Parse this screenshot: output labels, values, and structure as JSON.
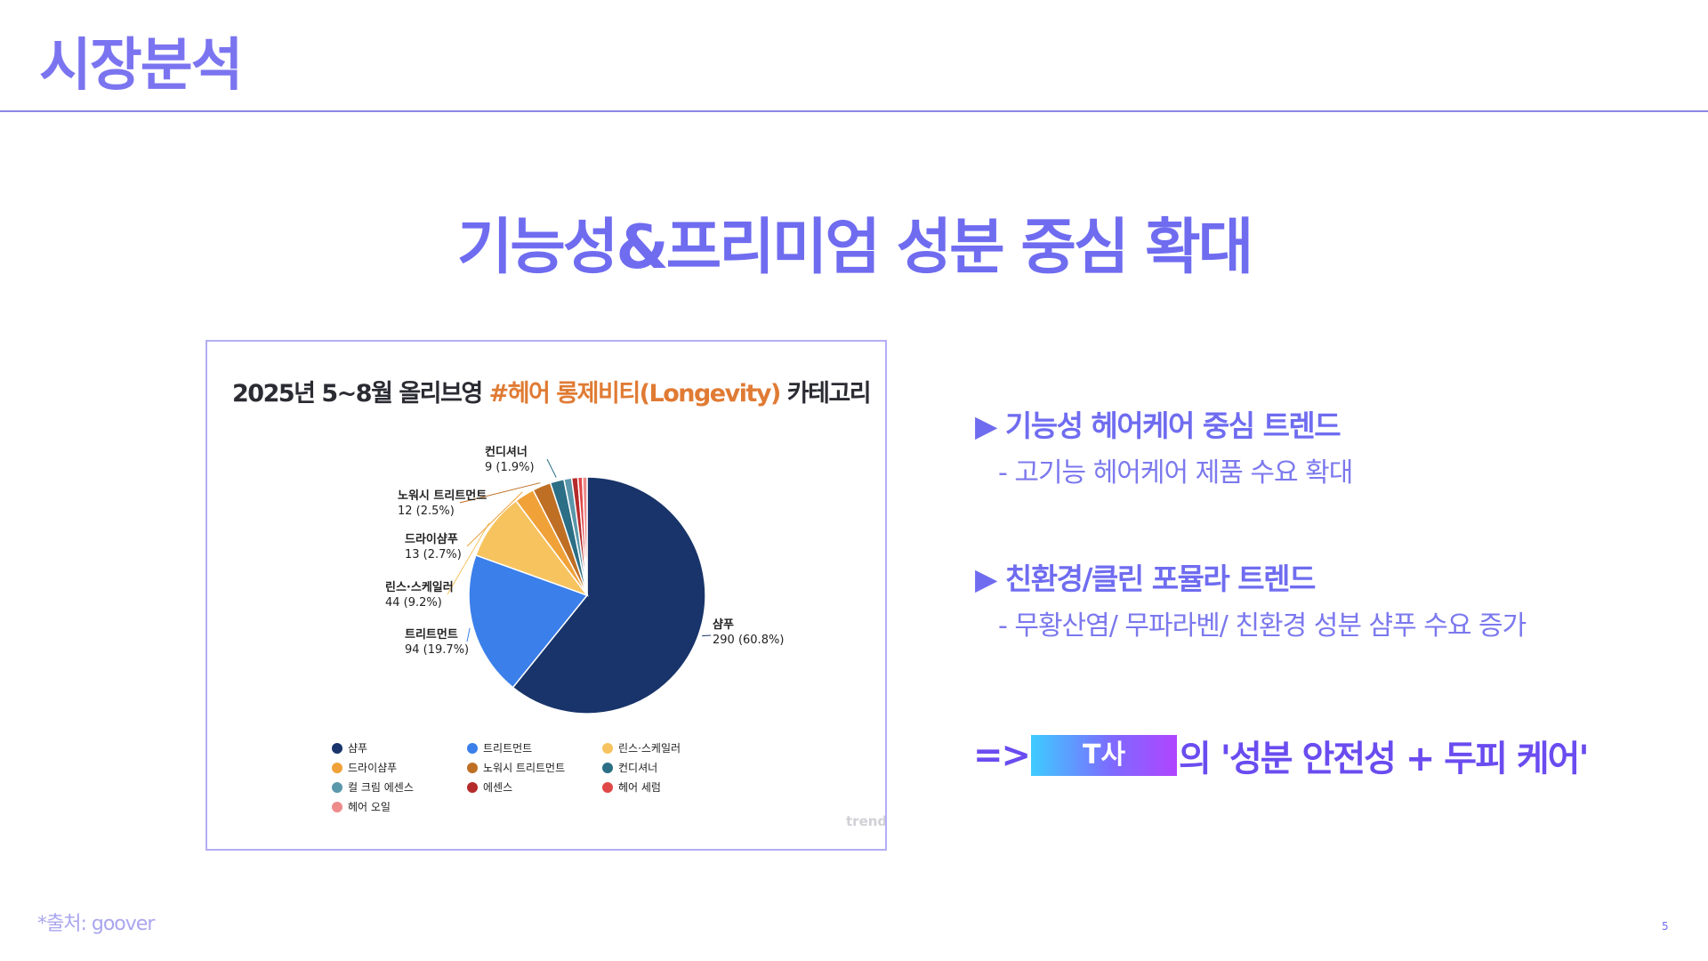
{
  "slide": {
    "title": "시장분석",
    "headline": "기능성&프리미엄 성분 중심 확대",
    "source": "*출처: goover",
    "page_number": "5"
  },
  "chart_card": {
    "title_main": "2025년 5~8월 올리브영 ",
    "title_accent": "#헤어 롱제비티(Longevity)",
    "title_tail": " 카테고리",
    "watermark": "trendie"
  },
  "chart_data": {
    "type": "pie",
    "title": "2025년 5~8월 올리브영 #헤어 롱제비티(Longevity) 카테고리",
    "slices": [
      {
        "label": "샴푸",
        "value": 290,
        "percent": 60.8,
        "display": "290 (60.8%)",
        "color": "#18346a"
      },
      {
        "label": "트리트먼트",
        "value": 94,
        "percent": 19.7,
        "display": "94 (19.7%)",
        "color": "#3b7fea"
      },
      {
        "label": "린스·스케일러",
        "value": 44,
        "percent": 9.2,
        "display": "44 (9.2%)",
        "color": "#f6c35f"
      },
      {
        "label": "드라이샴푸",
        "value": 13,
        "percent": 2.7,
        "display": "13 (2.7%)",
        "color": "#f0a239"
      },
      {
        "label": "노워시 트리트먼트",
        "value": 12,
        "percent": 2.5,
        "display": "12 (2.5%)",
        "color": "#bf6f24"
      },
      {
        "label": "컨디셔너",
        "value": 9,
        "percent": 1.9,
        "display": "9 (1.9%)",
        "color": "#2b6e85"
      },
      {
        "label": "컬 크림 에센스",
        "value": 5,
        "percent": 1.0,
        "display": "",
        "color": "#5a97aa"
      },
      {
        "label": "에센스",
        "value": 4,
        "percent": 0.8,
        "display": "",
        "color": "#b52a2a"
      },
      {
        "label": "헤어 세럼",
        "value": 3,
        "percent": 0.6,
        "display": "",
        "color": "#e04848"
      },
      {
        "label": "헤어 오일",
        "value": 3,
        "percent": 0.6,
        "display": "",
        "color": "#ee8a8a"
      }
    ],
    "legend_position": "bottom"
  },
  "bullets": [
    {
      "head": "▶ 기능성 헤어케어 중심 트렌드",
      "sub": "- 고기능 헤어케어 제품 수요 확대"
    },
    {
      "head": "▶ 친환경/클린 포뮬라 트렌드",
      "sub": "- 무황산염/ 무파라벤/ 친환경 성분 샴푸 수요 증가"
    }
  ],
  "conclusion": {
    "prefix": "=>",
    "company": "T사",
    "suffix": "의 '성분 안전성 + 두피 케어'"
  },
  "colors": {
    "accent": "#6f6cf0",
    "title": "#7b74f0",
    "chart_accent": "#e07b34"
  }
}
